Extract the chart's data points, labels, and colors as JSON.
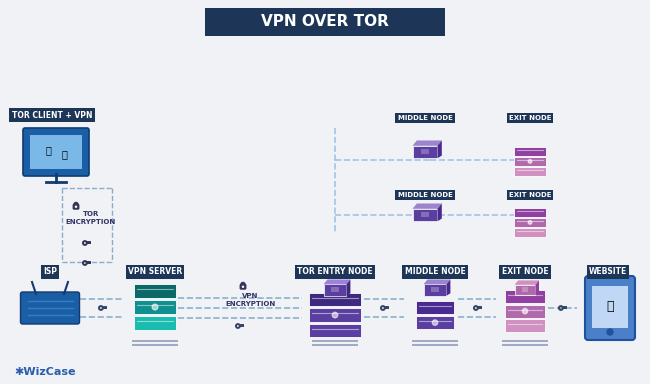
{
  "title": "VPN OVER TOR",
  "title_bg": "#1d3557",
  "title_color": "#ffffff",
  "bg_color": "#f0f2f5",
  "labels_top": {
    "tor_client": "TOR CLIENT + VPN",
    "middle_node1": "MIDDLE NODE",
    "exit_node1": "EXIT NODE",
    "middle_node2": "MIDDLE NODE",
    "exit_node2": "EXIT NODE"
  },
  "labels_bottom": {
    "isp": "ISP",
    "vpn_server": "VPN SERVER",
    "vpn_enc": "VPN\nENCRYPTION",
    "tor_entry": "TOR ENTRY NODE",
    "middle_node": "MIDDLE NODE",
    "exit_node": "EXIT NODE",
    "website": "WEBSITE"
  },
  "label_bg_color": "#1d3557",
  "label_text_color": "#ffffff",
  "tor_enc_label": "TOR\nENCRYPTION",
  "wizcase_color": "#2a5caa",
  "wizcase_text": "✱WizCase",
  "colors": {
    "isp_blue": "#1a5fa5",
    "vpn_teal": "#1abcb0",
    "vpn_teal_mid": "#0f9090",
    "vpn_teal_dark": "#0a6868",
    "tor_purple_light": "#a080d8",
    "tor_purple": "#5b3fa0",
    "tor_purple_dark": "#3d2a80",
    "middle_purple_light": "#9b85cc",
    "middle_purple": "#5b3fa0",
    "middle_purple_dark": "#4a2a90",
    "exit_pink_light": "#d090c0",
    "exit_pink": "#b06aac",
    "exit_pink_dark": "#9040a0",
    "website_blue": "#4a85cc",
    "website_blue_dark": "#2a5aaa",
    "dash_color": "#a0c4e8",
    "key_color": "#334466",
    "lock_color": "#333355",
    "line_color": "#8ab0cc",
    "solid_line": "#a0a8c0"
  }
}
